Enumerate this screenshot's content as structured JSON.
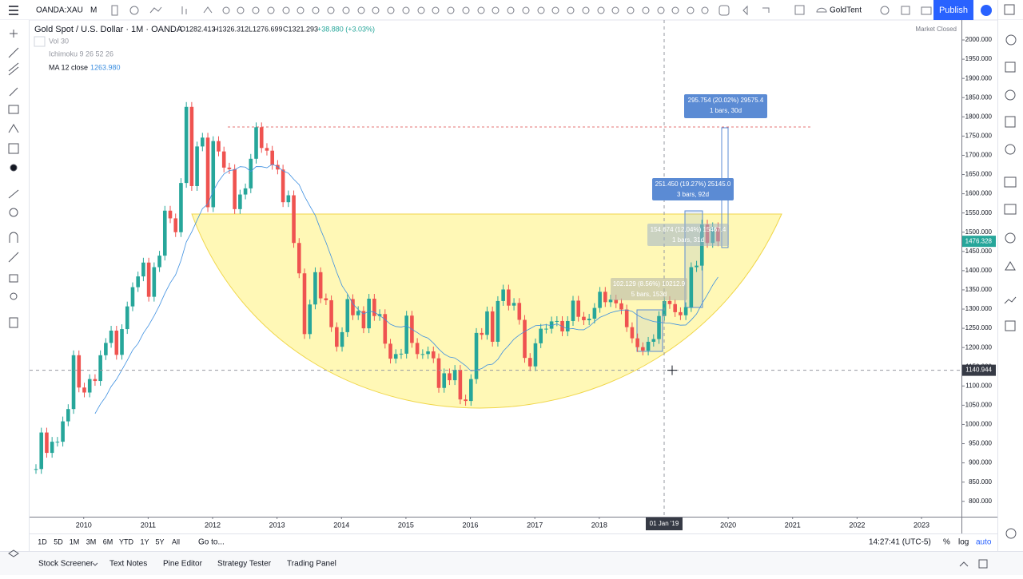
{
  "toolbar": {
    "symbol": "OANDA:XAU",
    "interval": "M",
    "account": "GoldTent",
    "publish": "Publish"
  },
  "legend": {
    "title": "Gold Spot / U.S. Dollar · 1M · OANDA",
    "open": "O1282.413",
    "high": "H1326.312",
    "low": "L1276.699",
    "close": "C1321.293",
    "change": "+38.880 (+3.03%)",
    "market_status": "Market Closed",
    "indicators": [
      "Vol 30",
      "Ichimoku 9 26 52 26",
      "MA 12 close"
    ],
    "ma_value": "1263.980"
  },
  "chart_data": {
    "type": "candlestick",
    "values": [
      884,
      979,
      926,
      955,
      955,
      1008,
      1040,
      1180,
      1096,
      1083,
      1118,
      1113,
      1180,
      1212,
      1244,
      1181,
      1248,
      1307,
      1357,
      1385,
      1421,
      1332,
      1409,
      1439,
      1556,
      1536,
      1500,
      1628,
      1826,
      1620,
      1723,
      1746,
      1565,
      1737,
      1710,
      1668,
      1664,
      1560,
      1598,
      1614,
      1691,
      1773,
      1719,
      1712,
      1675,
      1663,
      1578,
      1596,
      1472,
      1393,
      1235,
      1312,
      1396,
      1328,
      1323,
      1253,
      1202,
      1240,
      1326,
      1284,
      1295,
      1250,
      1327,
      1282,
      1287,
      1210,
      1171,
      1183,
      1184,
      1283,
      1212,
      1183,
      1183,
      1190,
      1172,
      1095,
      1133,
      1115,
      1142,
      1065,
      1061,
      1118,
      1238,
      1233,
      1294,
      1215,
      1321,
      1351,
      1309,
      1316,
      1272,
      1173,
      1151,
      1211,
      1249,
      1249,
      1268,
      1269,
      1242,
      1269,
      1322,
      1280,
      1271,
      1275,
      1303,
      1345,
      1318,
      1325,
      1315,
      1299,
      1253,
      1224,
      1201,
      1192,
      1215,
      1222,
      1282,
      1321,
      1313,
      1292,
      1284,
      1305,
      1409,
      1413,
      1520,
      1472,
      1513,
      1476
    ],
    "up_color": "#26a69a",
    "down_color": "#ef5350",
    "ma_color": "#3d8fe0",
    "ylim": [
      760,
      2052
    ],
    "yticks": [
      {
        "value": 800,
        "label": "800.000"
      },
      {
        "value": 850,
        "label": "850.000"
      },
      {
        "value": 900,
        "label": "900.000"
      },
      {
        "value": 950,
        "label": "950.000"
      },
      {
        "value": 1000,
        "label": "1000.000"
      },
      {
        "value": 1050,
        "label": "1050.000"
      },
      {
        "value": 1100,
        "label": "1100.000"
      },
      {
        "value": 1150,
        "label": "1150.000"
      },
      {
        "value": 1200,
        "label": "1200.000"
      },
      {
        "value": 1250,
        "label": "1250.000"
      },
      {
        "value": 1300,
        "label": "1300.000"
      },
      {
        "value": 1350,
        "label": "1350.000"
      },
      {
        "value": 1400,
        "label": "1400.000"
      },
      {
        "value": 1450,
        "label": "1450.000"
      },
      {
        "value": 1500,
        "label": "1500.000"
      },
      {
        "value": 1550,
        "label": "1550.000"
      },
      {
        "value": 1600,
        "label": "1600.000"
      },
      {
        "value": 1650,
        "label": "1650.000"
      },
      {
        "value": 1700,
        "label": "1700.000"
      },
      {
        "value": 1750,
        "label": "1750.000"
      },
      {
        "value": 1800,
        "label": "1800.000"
      },
      {
        "value": 1850,
        "label": "1850.000"
      },
      {
        "value": 1900,
        "label": "1900.000"
      },
      {
        "value": 1950,
        "label": "1950.000"
      },
      {
        "value": 2000,
        "label": "2000.000"
      }
    ],
    "xlim": [
      2009.16,
      2023.62
    ],
    "xticks": [
      2010,
      2011,
      2012,
      2013,
      2014,
      2015,
      2016,
      2017,
      2018,
      2019,
      2020,
      2021,
      2022,
      2023
    ],
    "crosshair_price": 1140.944,
    "crosshair_date": "01 Jan '19",
    "last_price": 1476.328,
    "measures": [
      {
        "line1": "295.754 (20.02%) 29575.4",
        "line2": "1 bars, 30d"
      },
      {
        "line1": "251.450 (19.27%) 25145.0",
        "line2": "3 bars, 92d"
      },
      {
        "line1": "154.674 (12.04%) 15467.4",
        "line2": "1 bars, 31d"
      },
      {
        "line1": "102.129 (8.56%) 10212.9",
        "line2": "5 bars, 153d"
      }
    ]
  },
  "bottom_bar": {
    "ranges": [
      "1D",
      "5D",
      "1M",
      "3M",
      "6M",
      "YTD",
      "1Y",
      "5Y",
      "All"
    ],
    "goto": "Go to...",
    "clock": "14:27:41 (UTC-5)",
    "percent": "%",
    "log": "log",
    "auto": "auto"
  },
  "tabs": [
    "Stock Screener",
    "Text Notes",
    "Pine Editor",
    "Strategy Tester",
    "Trading Panel"
  ]
}
